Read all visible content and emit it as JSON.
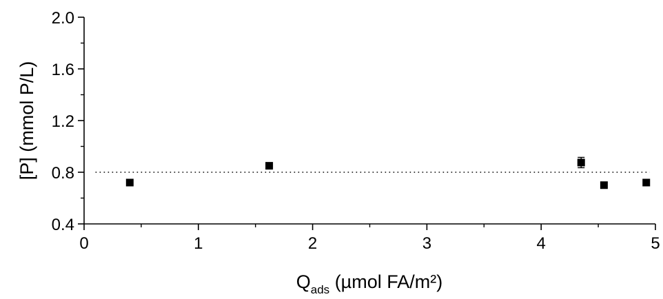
{
  "chart_data": {
    "type": "scatter",
    "xlabel": "Q",
    "xlabel_subscript": "ads",
    "xlabel_rest": " (µmol FA/m²)",
    "ylabel": "[P] (mmol P/L)",
    "xlim": [
      0,
      5
    ],
    "ylim": [
      0.4,
      2.0
    ],
    "x_ticks": [
      0,
      1,
      2,
      3,
      4,
      5
    ],
    "x_tick_labels": [
      "0",
      "1",
      "2",
      "3",
      "4",
      "5"
    ],
    "y_ticks": [
      0.4,
      0.8,
      1.2,
      1.6,
      2.0
    ],
    "y_tick_labels": [
      "0.4",
      "0.8",
      "1.2",
      "1.6",
      "2.0"
    ],
    "grid": false,
    "reference_line": {
      "y": 0.8,
      "style": "dotted",
      "x_range": [
        0.1,
        4.95
      ]
    },
    "marker": "square",
    "color": "#000000",
    "points": [
      {
        "x": 0.4,
        "y": 0.72,
        "err": 0
      },
      {
        "x": 1.62,
        "y": 0.85,
        "err": 0
      },
      {
        "x": 4.35,
        "y": 0.875,
        "err": 0.04
      },
      {
        "x": 4.55,
        "y": 0.7,
        "err": 0
      },
      {
        "x": 4.92,
        "y": 0.72,
        "err": 0
      }
    ]
  }
}
